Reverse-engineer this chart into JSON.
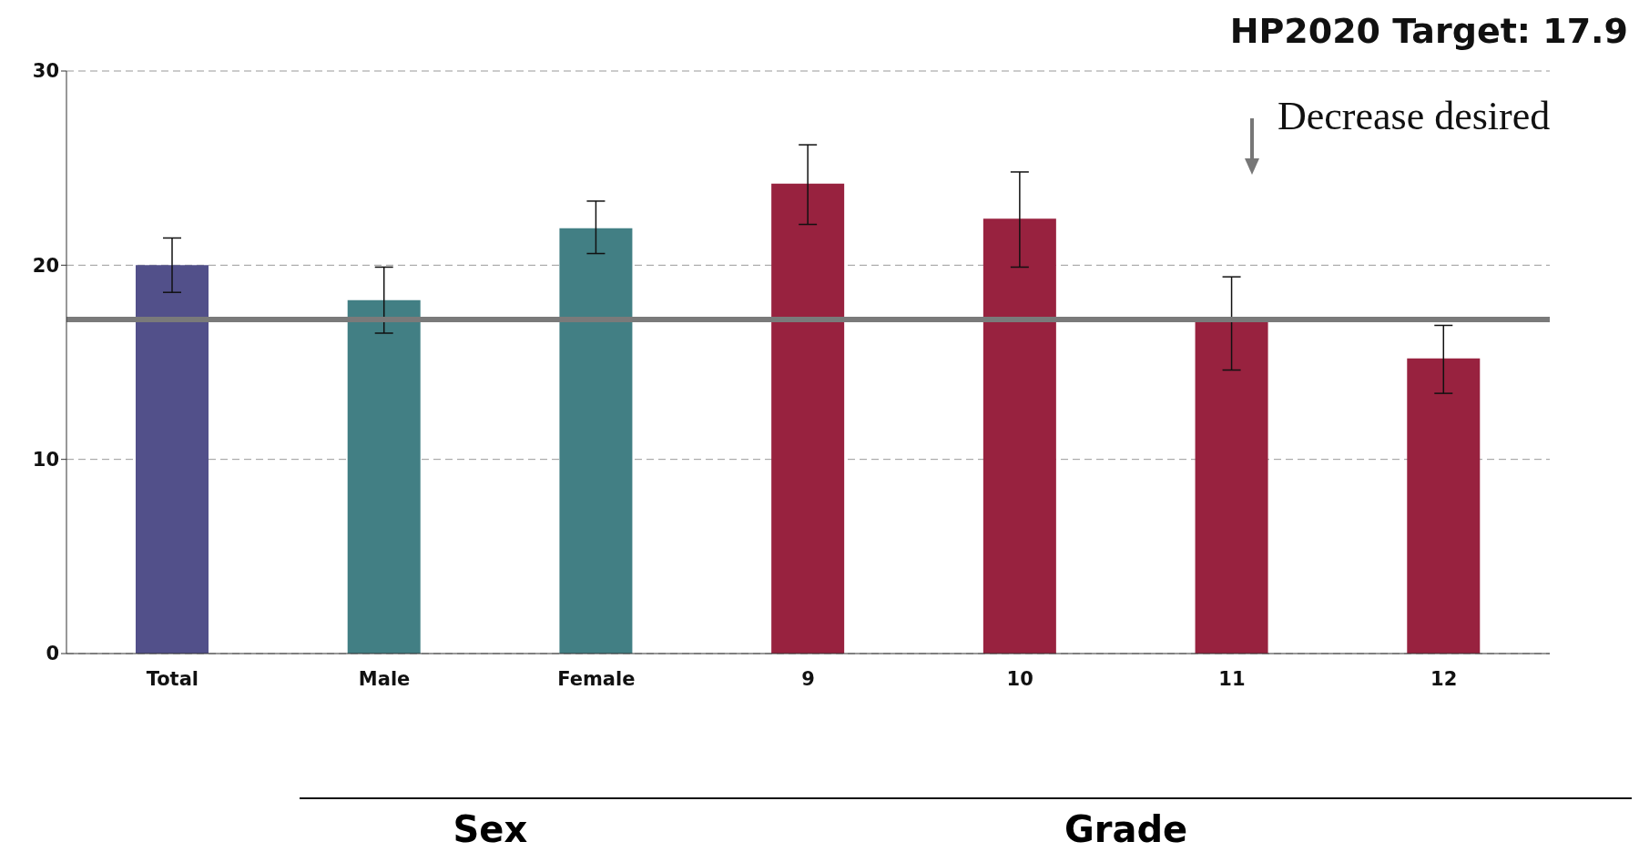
{
  "chart_data": {
    "type": "bar",
    "title": "HP2020 Target: 17.9",
    "categories": [
      "Total",
      "Male",
      "Female",
      "9",
      "10",
      "11",
      "12"
    ],
    "values": [
      20.0,
      18.2,
      21.9,
      24.2,
      22.4,
      17.2,
      15.2
    ],
    "colors": [
      "#52508a",
      "#427f84",
      "#427f84",
      "#98223f",
      "#98223f",
      "#98223f",
      "#98223f"
    ],
    "errors": [
      [
        18.6,
        21.4
      ],
      [
        16.5,
        19.9
      ],
      [
        20.6,
        23.3
      ],
      [
        22.1,
        26.2
      ],
      [
        19.9,
        24.8
      ],
      [
        14.6,
        19.4
      ],
      [
        13.4,
        16.9
      ]
    ],
    "ylim": [
      0,
      30
    ],
    "yticks": [
      0,
      10,
      20,
      30
    ],
    "grid": "y",
    "ref_lines": [
      {
        "axis": "y",
        "value": 17.2,
        "label": null,
        "color": "#7a7a7a"
      }
    ],
    "annotations": [
      "Decrease desired",
      "Sex",
      "Grade"
    ]
  }
}
